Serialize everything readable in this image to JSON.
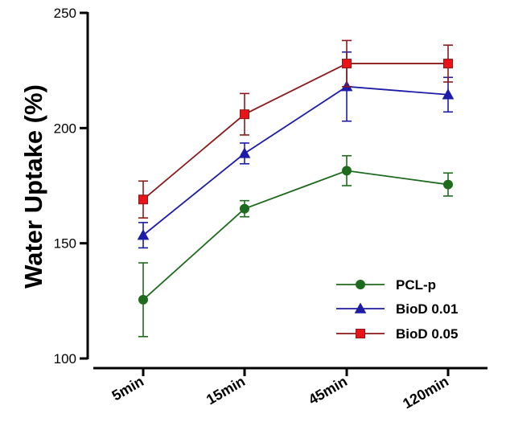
{
  "chart_data": {
    "type": "line",
    "title": "",
    "xlabel": "",
    "ylabel": "Water Uptake (%)",
    "ylim": [
      100,
      250
    ],
    "yticks": [
      100,
      150,
      200,
      250
    ],
    "categories": [
      "5min",
      "15min",
      "45min",
      "120min"
    ],
    "legend_position": "bottom-right",
    "series": [
      {
        "name": "PCL-p",
        "marker": "circle",
        "color": "#1e6b1e",
        "values": [
          125.5,
          165,
          181.5,
          175.5
        ],
        "errors": [
          16,
          3.5,
          6.5,
          5
        ]
      },
      {
        "name": "BioD 0.01",
        "marker": "triangle",
        "color": "#1c1ca8",
        "values": [
          153.5,
          189,
          218,
          214.5
        ],
        "errors": [
          5.5,
          4.5,
          15,
          7.5
        ]
      },
      {
        "name": "BioD 0.05",
        "marker": "square",
        "color": "#8b1a1a",
        "markerFill": "#e8141a",
        "values": [
          169,
          206,
          228,
          228
        ],
        "errors": [
          8,
          9,
          10,
          8
        ]
      }
    ]
  }
}
